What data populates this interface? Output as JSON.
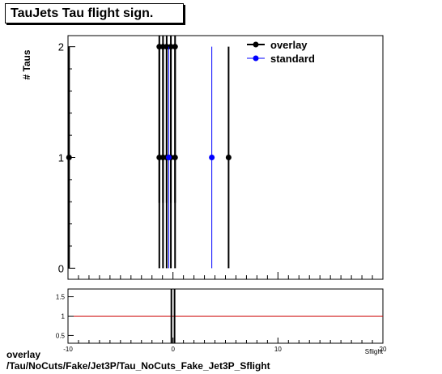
{
  "title": "TauJets Tau flight sign.",
  "footer": {
    "line1": "overlay",
    "line2": "/Tau/NoCuts/Fake/Jet3P/Tau_NoCuts_Fake_Jet3P_Sflight"
  },
  "chart_data": [
    {
      "type": "scatter",
      "ylabel": "# Taus",
      "xlim": [
        -10,
        20
      ],
      "ylim": [
        -0.1,
        2.1
      ],
      "yticks": [
        0,
        1,
        2
      ],
      "legend": "top-right",
      "series": [
        {
          "name": "overlay",
          "color": "#000000",
          "points": [
            {
              "x": -9.9,
              "y": 1,
              "err": 1
            },
            {
              "x": -1.3,
              "y": 2,
              "err": 1.41
            },
            {
              "x": -0.95,
              "y": 2,
              "err": 1.41
            },
            {
              "x": -0.6,
              "y": 2,
              "err": 1.41
            },
            {
              "x": -0.2,
              "y": 2,
              "err": 1.41
            },
            {
              "x": 0.2,
              "y": 2,
              "err": 1.41
            },
            {
              "x": -1.3,
              "y": 1,
              "err": 1
            },
            {
              "x": -0.95,
              "y": 1,
              "err": 1
            },
            {
              "x": -0.6,
              "y": 1,
              "err": 1
            },
            {
              "x": -0.2,
              "y": 1,
              "err": 1
            },
            {
              "x": 0.2,
              "y": 1,
              "err": 1
            },
            {
              "x": 5.3,
              "y": 1,
              "err": 1
            }
          ]
        },
        {
          "name": "standard",
          "color": "#0000ff",
          "points": [
            {
              "x": -0.4,
              "y": 1,
              "err": 1
            },
            {
              "x": 3.7,
              "y": 1,
              "err": 1
            }
          ]
        }
      ]
    },
    {
      "type": "line",
      "xlabel": "Sflight",
      "xlim": [
        -10,
        20
      ],
      "ylim": [
        0.3,
        1.7
      ],
      "xticks": [
        -10,
        0,
        10,
        20
      ],
      "yticks": [
        0.5,
        1,
        1.5
      ],
      "reference_line": {
        "y": 1,
        "color": "#cc0000"
      },
      "ratio_marks": [
        -0.15,
        0.15
      ]
    }
  ]
}
